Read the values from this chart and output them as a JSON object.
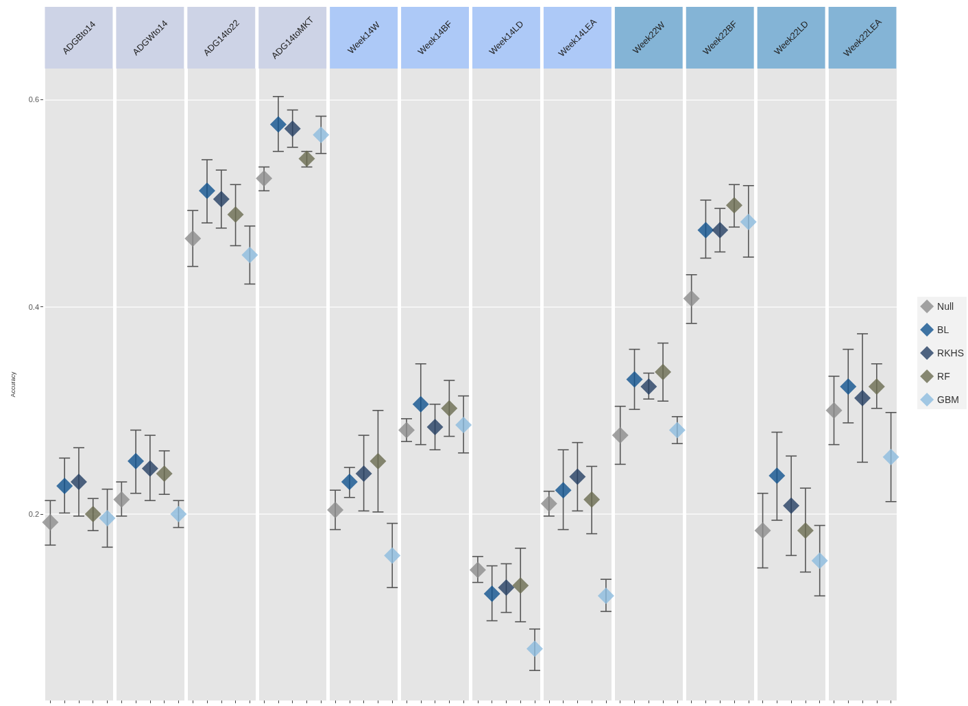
{
  "chart_data": {
    "type": "scatter",
    "ylabel": "Accuracy",
    "categories": [
      "ADGBto14",
      "ADGWto14",
      "ADG14to22",
      "ADG14toMKT",
      "Week14W",
      "Week14BF",
      "Week14LD",
      "Week14LEA",
      "Week22W",
      "Week22BF",
      "Week22LD",
      "Week22LEA"
    ],
    "ylim": [
      0.02,
      0.63
    ],
    "yticks": [
      0.2,
      0.4,
      0.6
    ],
    "grid": true,
    "marker": "diamond",
    "legend": "right",
    "series": [
      {
        "name": "Null",
        "color": "#8c8c8c",
        "values": [
          0.192,
          0.214,
          0.466,
          0.524,
          0.204,
          0.281,
          0.146,
          0.21,
          0.276,
          0.408,
          0.184,
          0.3
        ],
        "errors": [
          [
            0.17,
            0.213
          ],
          [
            0.198,
            0.231
          ],
          [
            0.439,
            0.493
          ],
          [
            0.512,
            0.535
          ],
          [
            0.185,
            0.223
          ],
          [
            0.27,
            0.292
          ],
          [
            0.134,
            0.159
          ],
          [
            0.198,
            0.222
          ],
          [
            0.248,
            0.304
          ],
          [
            0.384,
            0.431
          ],
          [
            0.148,
            0.22
          ],
          [
            0.267,
            0.333
          ]
        ]
      },
      {
        "name": "BL",
        "color": "#10538f",
        "values": [
          0.227,
          0.251,
          0.512,
          0.576,
          0.231,
          0.306,
          0.123,
          0.223,
          0.33,
          0.474,
          0.237,
          0.323
        ],
        "errors": [
          [
            0.201,
            0.254
          ],
          [
            0.22,
            0.281
          ],
          [
            0.481,
            0.542
          ],
          [
            0.55,
            0.603
          ],
          [
            0.216,
            0.245
          ],
          [
            0.267,
            0.345
          ],
          [
            0.097,
            0.15
          ],
          [
            0.185,
            0.262
          ],
          [
            0.301,
            0.359
          ],
          [
            0.447,
            0.503
          ],
          [
            0.194,
            0.279
          ],
          [
            0.288,
            0.359
          ]
        ]
      },
      {
        "name": "RKHS",
        "color": "#243f63",
        "values": [
          0.231,
          0.244,
          0.504,
          0.572,
          0.239,
          0.284,
          0.129,
          0.236,
          0.323,
          0.474,
          0.208,
          0.312
        ],
        "errors": [
          [
            0.198,
            0.264
          ],
          [
            0.213,
            0.276
          ],
          [
            0.476,
            0.532
          ],
          [
            0.554,
            0.59
          ],
          [
            0.203,
            0.276
          ],
          [
            0.262,
            0.306
          ],
          [
            0.105,
            0.152
          ],
          [
            0.203,
            0.269
          ],
          [
            0.311,
            0.336
          ],
          [
            0.453,
            0.495
          ],
          [
            0.16,
            0.256
          ],
          [
            0.25,
            0.374
          ]
        ]
      },
      {
        "name": "RF",
        "color": "#6a6b50",
        "values": [
          0.2,
          0.239,
          0.489,
          0.543,
          0.251,
          0.302,
          0.131,
          0.214,
          0.337,
          0.498,
          0.184,
          0.323
        ],
        "errors": [
          [
            0.184,
            0.215
          ],
          [
            0.219,
            0.261
          ],
          [
            0.459,
            0.518
          ],
          [
            0.535,
            0.55
          ],
          [
            0.202,
            0.3
          ],
          [
            0.275,
            0.329
          ],
          [
            0.096,
            0.167
          ],
          [
            0.181,
            0.246
          ],
          [
            0.309,
            0.365
          ],
          [
            0.477,
            0.518
          ],
          [
            0.144,
            0.225
          ],
          [
            0.302,
            0.345
          ]
        ]
      },
      {
        "name": "GBM",
        "color": "#8cbbdf",
        "values": [
          0.196,
          0.2,
          0.45,
          0.566,
          0.16,
          0.286,
          0.07,
          0.121,
          0.281,
          0.482,
          0.155,
          0.255
        ],
        "errors": [
          [
            0.168,
            0.224
          ],
          [
            0.187,
            0.213
          ],
          [
            0.422,
            0.478
          ],
          [
            0.548,
            0.584
          ],
          [
            0.129,
            0.191
          ],
          [
            0.259,
            0.314
          ],
          [
            0.049,
            0.089
          ],
          [
            0.106,
            0.137
          ],
          [
            0.268,
            0.294
          ],
          [
            0.448,
            0.517
          ],
          [
            0.121,
            0.189
          ],
          [
            0.212,
            0.298
          ]
        ]
      }
    ]
  }
}
